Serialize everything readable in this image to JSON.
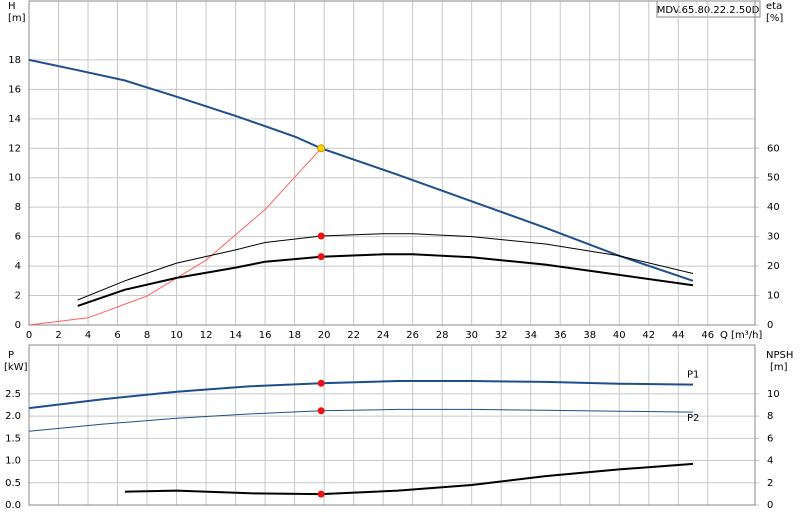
{
  "chart_data": [
    {
      "type": "line",
      "title": "MDV.65.80.22.2.50D",
      "y_label": "H",
      "y_unit": "[m]",
      "y2_label": "eta",
      "y2_unit": "[%]",
      "x_label": "Q [m³/h]",
      "xlim": [
        0,
        49.2
      ],
      "ylim": [
        0,
        22
      ],
      "y2lim": [
        0,
        110
      ],
      "xticks": [
        0,
        2,
        4,
        6,
        8,
        10,
        12,
        14,
        16,
        18,
        20,
        22,
        24,
        26,
        28,
        30,
        32,
        34,
        36,
        38,
        40,
        42,
        44,
        46
      ],
      "yticks": [
        0,
        2,
        4,
        6,
        8,
        10,
        12,
        14,
        16,
        18
      ],
      "y2ticks": [
        0,
        10,
        20,
        30,
        40,
        50,
        60
      ],
      "show_xtick_labels": true,
      "grid": true,
      "duty_x": 19.8,
      "series": [
        {
          "color": "#ff6060",
          "line_width": 1,
          "x": [
            0,
            4,
            8,
            12,
            16,
            19.8
          ],
          "values": [
            0,
            0.49,
            1.96,
            4.41,
            7.84,
            12
          ]
        },
        {
          "color": "#1f4e8c",
          "line_width": 2,
          "marker_color": "#ffd700",
          "x": [
            0,
            3.3,
            6.5,
            10,
            14,
            18,
            19.8,
            25,
            30,
            35,
            40,
            45
          ],
          "values": [
            18,
            17.3,
            16.6,
            15.5,
            14.2,
            12.8,
            12,
            10.2,
            8.4,
            6.6,
            4.7,
            3
          ]
        },
        {
          "color": "#000000",
          "line_width": 1,
          "axis": "y2",
          "marker_color": "#ee1111",
          "x": [
            3.3,
            6.5,
            10,
            14,
            16,
            19.8,
            24,
            26,
            30,
            35,
            40,
            45
          ],
          "values": [
            8.5,
            15,
            21,
            25.5,
            28,
            30.2,
            31,
            31,
            30,
            27.5,
            23.5,
            17.5
          ]
        },
        {
          "color": "#000000",
          "line_width": 2,
          "axis": "y2",
          "marker_color": "#ee1111",
          "x": [
            3.3,
            6.5,
            10,
            14,
            16,
            19.8,
            24,
            26,
            30,
            35,
            40,
            45
          ],
          "values": [
            6.5,
            12,
            16,
            19.5,
            21.5,
            23.2,
            24,
            24,
            23,
            20.5,
            17,
            13.5
          ]
        }
      ]
    },
    {
      "type": "line",
      "y_label": "P",
      "y_unit": "[kW]",
      "y2_label": "NPSH",
      "y2_unit": "[m]",
      "xlim": [
        0,
        49.2
      ],
      "ylim": [
        0,
        3.6
      ],
      "y2lim": [
        0,
        14.4
      ],
      "xticks": [
        0,
        2,
        4,
        6,
        8,
        10,
        12,
        14,
        16,
        18,
        20,
        22,
        24,
        26,
        28,
        30,
        32,
        34,
        36,
        38,
        40,
        42,
        44,
        46
      ],
      "yticks": [
        {
          "value": 0,
          "label": "0.0"
        },
        0.5,
        {
          "value": 1,
          "label": "1.0"
        },
        1.5,
        {
          "value": 2,
          "label": "2.0"
        },
        2.5
      ],
      "y2ticks": [
        0,
        2,
        4,
        6,
        8,
        10
      ],
      "show_xtick_labels": false,
      "grid": true,
      "duty_x": 19.8,
      "series": [
        {
          "name": "P1",
          "color": "#1f4e8c",
          "line_width": 2,
          "marker_color": "#ee1111",
          "x": [
            0,
            5,
            10,
            15,
            19.8,
            25,
            30,
            35,
            40,
            45
          ],
          "values": [
            2.18,
            2.38,
            2.55,
            2.67,
            2.74,
            2.79,
            2.79,
            2.77,
            2.73,
            2.71
          ]
        },
        {
          "name": "P2",
          "color": "#1f4e8c",
          "line_width": 1,
          "marker_color": "#ee1111",
          "x": [
            0,
            5,
            10,
            15,
            19.8,
            25,
            30,
            35,
            40,
            45
          ],
          "values": [
            1.66,
            1.82,
            1.95,
            2.05,
            2.12,
            2.15,
            2.15,
            2.13,
            2.11,
            2.09
          ]
        },
        {
          "color": "#000000",
          "line_width": 2,
          "axis": "y2",
          "marker_color": "#ee1111",
          "x": [
            6.5,
            10,
            15,
            19.8,
            25,
            30,
            35,
            40,
            45
          ],
          "values": [
            1.2,
            1.3,
            1.05,
            0.98,
            1.3,
            1.8,
            2.6,
            3.2,
            3.7
          ]
        }
      ]
    }
  ]
}
